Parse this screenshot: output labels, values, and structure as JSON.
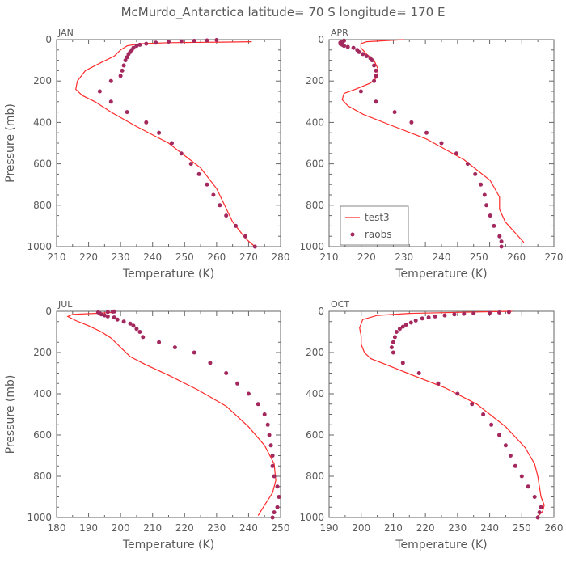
{
  "figure": {
    "title": "McMurdo_Antarctica  latitude= 70 S longitude= 170 E"
  },
  "colors": {
    "model_line": "#ff2a2a",
    "obs_dot": "#a3285e",
    "axes": "#666666",
    "text": "#5a5a5a"
  },
  "chart_data": [
    {
      "type": "line",
      "panel_label": "JAN",
      "xlabel": "Temperature (K)",
      "ylabel": "Pressure (mb)",
      "xlim": [
        210,
        280
      ],
      "ylim": [
        1000,
        0
      ],
      "y_inverted": true,
      "xticks": [
        210,
        220,
        230,
        240,
        250,
        260,
        270,
        280
      ],
      "yticks": [
        0,
        200,
        400,
        600,
        800,
        1000
      ],
      "series": [
        {
          "name": "test3",
          "kind": "line",
          "x": [
            271,
            262,
            245,
            236,
            232,
            230,
            228,
            224,
            219,
            216.5,
            216,
            218,
            222,
            227,
            235,
            245,
            255,
            260,
            262.5,
            265,
            269,
            272
          ],
          "y": [
            10,
            12,
            15,
            20,
            30,
            50,
            80,
            110,
            150,
            200,
            240,
            270,
            300,
            350,
            420,
            500,
            620,
            720,
            800,
            880,
            960,
            1000
          ]
        },
        {
          "name": "raobs",
          "kind": "scatter",
          "x": [
            272,
            269,
            266,
            263,
            261,
            259,
            257,
            254.5,
            252,
            249,
            246,
            242,
            238,
            232,
            227,
            223.5,
            227,
            230,
            230.5,
            231,
            231.5,
            232,
            232.5,
            233,
            233.5,
            234,
            235,
            236,
            238,
            241,
            245,
            249,
            253,
            257,
            260
          ],
          "y": [
            1000,
            950,
            900,
            850,
            800,
            750,
            700,
            650,
            600,
            550,
            500,
            450,
            400,
            350,
            300,
            250,
            200,
            175,
            150,
            125,
            100,
            85,
            70,
            60,
            50,
            40,
            30,
            25,
            20,
            15,
            10,
            8,
            6,
            4,
            2
          ]
        }
      ]
    },
    {
      "type": "line",
      "panel_label": "APR",
      "xlabel": "Temperature (K)",
      "ylabel": "",
      "xlim": [
        210,
        270
      ],
      "ylim": [
        1000,
        0
      ],
      "y_inverted": true,
      "xticks": [
        210,
        220,
        230,
        240,
        250,
        260,
        270
      ],
      "yticks": [
        0,
        200,
        400,
        600,
        800,
        1000
      ],
      "legend": {
        "position": "bottom-left",
        "entries": [
          "test3",
          "raobs"
        ]
      },
      "series": [
        {
          "name": "test3",
          "kind": "line",
          "x": [
            230,
            220,
            218.5,
            218.5,
            220,
            222,
            223,
            223,
            221,
            217,
            214,
            213.5,
            215,
            219,
            226,
            236,
            246,
            253,
            255.5,
            255.5,
            257,
            262
          ],
          "y": [
            0,
            10,
            20,
            40,
            70,
            100,
            140,
            180,
            210,
            240,
            260,
            290,
            320,
            360,
            410,
            480,
            580,
            680,
            760,
            820,
            880,
            980
          ]
        },
        {
          "name": "raobs",
          "kind": "scatter",
          "x": [
            256,
            256,
            255.5,
            254,
            253,
            252,
            251.5,
            250.5,
            249,
            247,
            244,
            240,
            236,
            232,
            227.5,
            222.5,
            218.5,
            222,
            222.5,
            222.5,
            222,
            221.5,
            221,
            220,
            219,
            218,
            217.5,
            216.5,
            215,
            214,
            213.5,
            213,
            213,
            213.5,
            214
          ],
          "y": [
            1000,
            975,
            950,
            900,
            850,
            800,
            750,
            700,
            650,
            600,
            550,
            500,
            450,
            400,
            350,
            300,
            250,
            200,
            175,
            150,
            125,
            100,
            90,
            80,
            70,
            60,
            50,
            40,
            35,
            30,
            25,
            20,
            15,
            10,
            5
          ]
        }
      ]
    },
    {
      "type": "line",
      "panel_label": "JUL",
      "xlabel": "Temperature (K)",
      "ylabel": "Pressure (mb)",
      "xlim": [
        180,
        250
      ],
      "ylim": [
        1000,
        0
      ],
      "y_inverted": true,
      "xticks": [
        180,
        190,
        200,
        210,
        220,
        230,
        240,
        250
      ],
      "yticks": [
        0,
        200,
        400,
        600,
        800,
        1000
      ],
      "series": [
        {
          "name": "test3",
          "kind": "line",
          "x": [
            198,
            192,
            185,
            183.5,
            186,
            190,
            194,
            197,
            199,
            201,
            203,
            208,
            215,
            224,
            233,
            240,
            245,
            248,
            248.5,
            247.5,
            245,
            243
          ],
          "y": [
            5,
            10,
            15,
            25,
            45,
            70,
            100,
            130,
            160,
            190,
            220,
            260,
            310,
            380,
            460,
            560,
            650,
            740,
            820,
            880,
            940,
            990
          ]
        },
        {
          "name": "raobs",
          "kind": "scatter",
          "x": [
            247.5,
            248,
            249,
            249.5,
            249,
            248,
            247.5,
            247.5,
            247,
            246.5,
            246,
            245,
            243,
            240,
            236.5,
            233,
            228,
            223,
            217,
            212,
            207,
            206,
            205,
            204,
            203,
            201,
            199,
            198,
            196,
            195,
            194,
            193.5,
            193,
            196,
            197.5,
            198
          ],
          "y": [
            1000,
            975,
            950,
            900,
            850,
            800,
            750,
            700,
            650,
            600,
            550,
            500,
            450,
            400,
            350,
            300,
            250,
            200,
            175,
            150,
            125,
            100,
            85,
            70,
            60,
            50,
            40,
            30,
            25,
            20,
            15,
            10,
            5,
            3,
            2,
            1
          ]
        }
      ]
    },
    {
      "type": "line",
      "panel_label": "OCT",
      "xlabel": "Temperature (K)",
      "ylabel": "",
      "xlim": [
        190,
        260
      ],
      "ylim": [
        1000,
        0
      ],
      "y_inverted": true,
      "xticks": [
        190,
        200,
        210,
        220,
        230,
        240,
        250,
        260
      ],
      "yticks": [
        0,
        200,
        400,
        600,
        800,
        1000
      ],
      "series": [
        {
          "name": "test3",
          "kind": "line",
          "x": [
            247,
            230,
            215,
            205,
            200.5,
            199.5,
            200,
            200,
            201,
            203,
            208,
            216,
            226,
            236,
            245,
            251,
            254,
            255,
            255.5,
            256,
            257,
            256.5,
            255
          ],
          "y": [
            0,
            5,
            10,
            20,
            40,
            80,
            120,
            160,
            200,
            230,
            260,
            310,
            370,
            450,
            560,
            660,
            740,
            800,
            850,
            900,
            940,
            970,
            995
          ]
        },
        {
          "name": "raobs",
          "kind": "scatter",
          "x": [
            255,
            255.5,
            256,
            254,
            252,
            250,
            248,
            246.5,
            245,
            243,
            240.5,
            238,
            234.5,
            230,
            224,
            218,
            213,
            210,
            209.5,
            210,
            210.5,
            211,
            212,
            213,
            214,
            215.5,
            217,
            219,
            221,
            223,
            226,
            229,
            232,
            235,
            240,
            243,
            246
          ],
          "y": [
            1000,
            975,
            950,
            900,
            850,
            800,
            750,
            700,
            650,
            600,
            550,
            500,
            450,
            400,
            350,
            300,
            250,
            200,
            175,
            150,
            125,
            100,
            85,
            75,
            65,
            55,
            45,
            35,
            30,
            25,
            20,
            15,
            12,
            10,
            8,
            6,
            4
          ]
        }
      ]
    }
  ]
}
